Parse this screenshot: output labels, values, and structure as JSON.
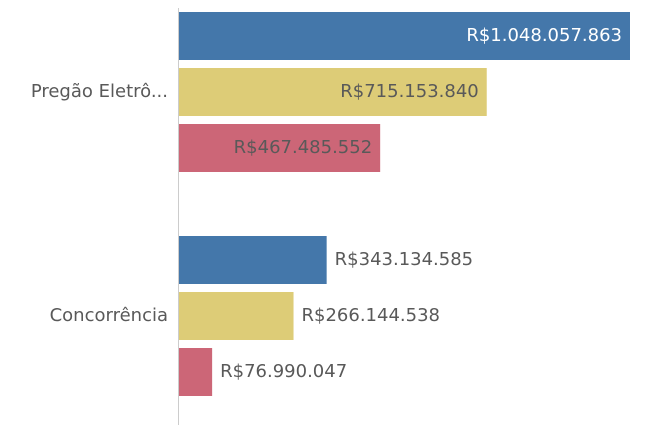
{
  "chart_data": {
    "type": "bar",
    "orientation": "horizontal",
    "categories": [
      "Pregão Eletrô...",
      "Concorrência"
    ],
    "series": [
      {
        "color": "#4477aa",
        "values": [
          1048057863,
          343134585
        ],
        "value_labels": [
          "R$1.048.057.863",
          "R$343.134.585"
        ]
      },
      {
        "color": "#ddcc77",
        "values": [
          715153840,
          266144538
        ],
        "value_labels": [
          "R$715.153.840",
          "R$266.144.538"
        ]
      },
      {
        "color": "#cc6677",
        "values": [
          467485552,
          76990047
        ],
        "value_labels": [
          "R$467.485.552",
          "R$76.990.047"
        ]
      }
    ]
  }
}
